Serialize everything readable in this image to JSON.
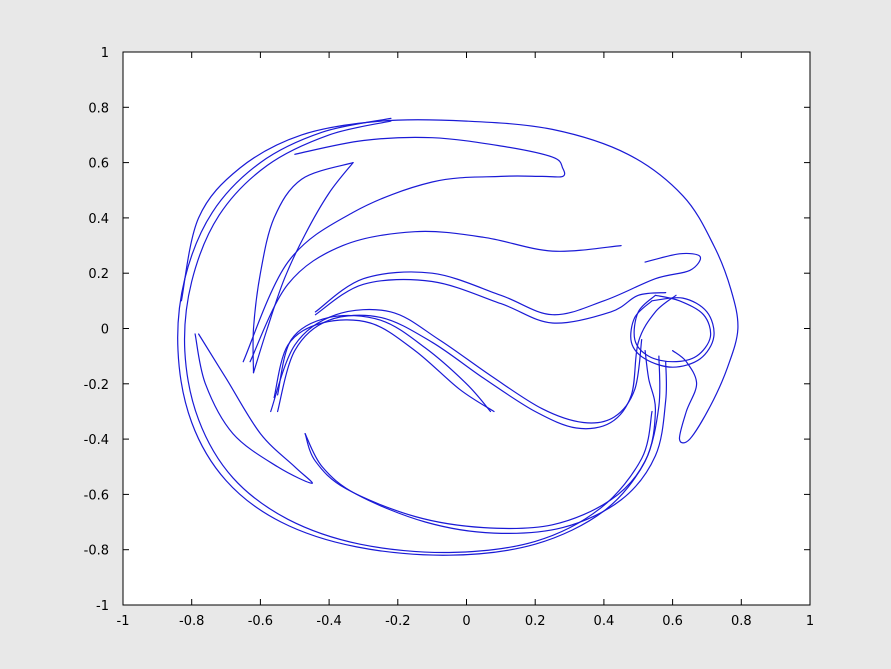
{
  "chart_data": {
    "type": "line",
    "title": "",
    "xlabel": "",
    "ylabel": "",
    "xlim": [
      -1,
      1
    ],
    "ylim": [
      -1,
      1
    ],
    "grid": false,
    "legend": "none",
    "line_color": "#1a1ad6",
    "background": "#e8e8e8",
    "plot_background": "#ffffff",
    "xticks": [
      -1,
      -0.8,
      -0.6,
      -0.4,
      -0.2,
      0,
      0.2,
      0.4,
      0.6,
      0.8,
      1
    ],
    "xtick_labels": [
      "-1",
      "-0.8",
      "-0.6",
      "-0.4",
      "-0.2",
      "0",
      "0.2",
      "0.4",
      "0.6",
      "0.8",
      "1"
    ],
    "yticks": [
      -1,
      -0.8,
      -0.6,
      -0.4,
      -0.2,
      0,
      0.2,
      0.4,
      0.6,
      0.8,
      1
    ],
    "ytick_labels": [
      "-1",
      "-0.8",
      "-0.6",
      "-0.4",
      "-0.2",
      "0",
      "0.2",
      "0.4",
      "0.6",
      "0.8",
      "1"
    ],
    "series": [
      {
        "points": [
          [
            -0.22,
            0.76
          ],
          [
            -0.42,
            0.71
          ],
          [
            -0.6,
            0.6
          ],
          [
            -0.74,
            0.42
          ],
          [
            -0.82,
            0.18
          ],
          [
            -0.84,
            -0.08
          ],
          [
            -0.8,
            -0.34
          ],
          [
            -0.7,
            -0.55
          ],
          [
            -0.54,
            -0.7
          ],
          [
            -0.32,
            -0.79
          ],
          [
            -0.05,
            -0.82
          ],
          [
            0.2,
            -0.78
          ],
          [
            0.4,
            -0.66
          ],
          [
            0.52,
            -0.48
          ],
          [
            0.55,
            -0.3
          ],
          [
            0.53,
            -0.18
          ],
          [
            0.52,
            -0.08
          ]
        ]
      },
      {
        "points": [
          [
            -0.22,
            0.75
          ],
          [
            -0.4,
            0.7
          ],
          [
            -0.58,
            0.59
          ],
          [
            -0.72,
            0.41
          ],
          [
            -0.8,
            0.17
          ],
          [
            -0.82,
            -0.08
          ],
          [
            -0.78,
            -0.33
          ],
          [
            -0.68,
            -0.54
          ],
          [
            -0.52,
            -0.69
          ],
          [
            -0.31,
            -0.78
          ],
          [
            -0.05,
            -0.81
          ],
          [
            0.2,
            -0.77
          ],
          [
            0.39,
            -0.65
          ],
          [
            0.51,
            -0.47
          ],
          [
            0.54,
            -0.3
          ]
        ]
      },
      {
        "points": [
          [
            -0.83,
            0.1
          ],
          [
            -0.78,
            0.4
          ],
          [
            -0.66,
            0.58
          ],
          [
            -0.48,
            0.7
          ],
          [
            -0.25,
            0.75
          ],
          [
            0,
            0.75
          ],
          [
            0.25,
            0.72
          ],
          [
            0.47,
            0.63
          ],
          [
            0.63,
            0.48
          ],
          [
            0.72,
            0.3
          ],
          [
            0.77,
            0.14
          ],
          [
            0.79,
            0
          ],
          [
            0.76,
            -0.14
          ],
          [
            0.71,
            -0.28
          ],
          [
            0.65,
            -0.4
          ],
          [
            0.62,
            -0.4
          ],
          [
            0.64,
            -0.3
          ],
          [
            0.67,
            -0.2
          ],
          [
            0.64,
            -0.12
          ],
          [
            0.6,
            -0.08
          ]
        ]
      },
      {
        "points": [
          [
            -0.33,
            0.6
          ],
          [
            -0.48,
            0.54
          ],
          [
            -0.56,
            0.4
          ],
          [
            -0.6,
            0.2
          ],
          [
            -0.62,
            0
          ],
          [
            -0.62,
            -0.16
          ]
        ]
      },
      {
        "points": [
          [
            -0.33,
            0.6
          ],
          [
            -0.4,
            0.49
          ],
          [
            -0.47,
            0.34
          ],
          [
            -0.53,
            0.18
          ],
          [
            -0.58,
            0
          ],
          [
            -0.62,
            -0.16
          ]
        ]
      },
      {
        "points": [
          [
            -0.65,
            -0.12
          ],
          [
            -0.52,
            0.24
          ],
          [
            -0.33,
            0.42
          ],
          [
            -0.1,
            0.53
          ],
          [
            0.1,
            0.55
          ],
          [
            0.22,
            0.55
          ],
          [
            0.28,
            0.55
          ],
          [
            0.28,
            0.58
          ],
          [
            0.25,
            0.62
          ],
          [
            0.1,
            0.66
          ],
          [
            -0.1,
            0.69
          ],
          [
            -0.3,
            0.68
          ],
          [
            -0.5,
            0.63
          ]
        ]
      },
      {
        "points": [
          [
            -0.63,
            -0.12
          ],
          [
            -0.52,
            0.16
          ],
          [
            -0.36,
            0.3
          ],
          [
            -0.15,
            0.35
          ],
          [
            0.05,
            0.33
          ],
          [
            0.25,
            0.28
          ],
          [
            0.45,
            0.3
          ]
        ]
      },
      {
        "points": [
          [
            -0.44,
            0.06
          ],
          [
            -0.3,
            0.18
          ],
          [
            -0.1,
            0.2
          ],
          [
            0.1,
            0.12
          ],
          [
            0.25,
            0.05
          ],
          [
            0.4,
            0.1
          ],
          [
            0.55,
            0.18
          ],
          [
            0.65,
            0.21
          ],
          [
            0.68,
            0.26
          ],
          [
            0.62,
            0.27
          ],
          [
            0.52,
            0.24
          ]
        ]
      },
      {
        "points": [
          [
            -0.44,
            0.05
          ],
          [
            -0.3,
            0.16
          ],
          [
            -0.1,
            0.17
          ],
          [
            0.1,
            0.09
          ],
          [
            0.25,
            0.02
          ],
          [
            0.42,
            0.06
          ],
          [
            0.5,
            0.12
          ],
          [
            0.58,
            0.13
          ]
        ]
      },
      {
        "points": [
          [
            -0.55,
            -0.3
          ],
          [
            -0.5,
            -0.08
          ],
          [
            -0.4,
            0.03
          ],
          [
            -0.25,
            0.04
          ],
          [
            -0.1,
            -0.05
          ],
          [
            0.05,
            -0.18
          ],
          [
            0.2,
            -0.3
          ],
          [
            0.32,
            -0.36
          ],
          [
            0.42,
            -0.34
          ],
          [
            0.48,
            -0.24
          ],
          [
            0.5,
            -0.05
          ],
          [
            0.55,
            0.06
          ],
          [
            0.61,
            0.12
          ]
        ]
      },
      {
        "points": [
          [
            -0.57,
            -0.3
          ],
          [
            -0.5,
            -0.06
          ],
          [
            -0.38,
            0.05
          ],
          [
            -0.22,
            0.06
          ],
          [
            -0.08,
            -0.04
          ],
          [
            0.07,
            -0.17
          ],
          [
            0.22,
            -0.29
          ],
          [
            0.34,
            -0.34
          ],
          [
            0.43,
            -0.32
          ],
          [
            0.49,
            -0.22
          ],
          [
            0.51,
            -0.04
          ]
        ]
      },
      {
        "points": [
          [
            -0.56,
            -0.25
          ],
          [
            -0.52,
            -0.06
          ],
          [
            -0.42,
            0.02
          ],
          [
            -0.28,
            0.02
          ],
          [
            -0.15,
            -0.08
          ],
          [
            -0.02,
            -0.22
          ],
          [
            0.08,
            -0.3
          ]
        ]
      },
      {
        "points": [
          [
            -0.55,
            -0.24
          ],
          [
            -0.51,
            -0.04
          ],
          [
            -0.4,
            0.04
          ],
          [
            -0.25,
            0.03
          ],
          [
            -0.12,
            -0.07
          ],
          [
            0,
            -0.2
          ],
          [
            0.07,
            -0.3
          ]
        ]
      },
      {
        "points": [
          [
            -0.79,
            -0.02
          ],
          [
            -0.76,
            -0.2
          ],
          [
            -0.68,
            -0.38
          ],
          [
            -0.55,
            -0.5
          ],
          [
            -0.45,
            -0.56
          ],
          [
            -0.5,
            -0.5
          ],
          [
            -0.6,
            -0.38
          ],
          [
            -0.7,
            -0.18
          ],
          [
            -0.78,
            -0.02
          ]
        ]
      },
      {
        "points": [
          [
            -0.47,
            -0.38
          ],
          [
            -0.44,
            -0.48
          ],
          [
            -0.35,
            -0.58
          ],
          [
            -0.15,
            -0.68
          ],
          [
            0.05,
            -0.72
          ],
          [
            0.25,
            -0.71
          ],
          [
            0.42,
            -0.62
          ],
          [
            0.52,
            -0.48
          ],
          [
            0.56,
            -0.28
          ],
          [
            0.56,
            -0.1
          ]
        ]
      },
      {
        "points": [
          [
            -0.47,
            -0.38
          ],
          [
            -0.42,
            -0.5
          ],
          [
            -0.32,
            -0.6
          ],
          [
            -0.12,
            -0.7
          ],
          [
            0.08,
            -0.74
          ],
          [
            0.28,
            -0.72
          ],
          [
            0.45,
            -0.62
          ],
          [
            0.55,
            -0.46
          ],
          [
            0.58,
            -0.26
          ],
          [
            0.58,
            -0.12
          ]
        ]
      },
      {
        "points": [
          [
            0.54,
            0.1
          ],
          [
            0.49,
            0.04
          ],
          [
            0.48,
            -0.05
          ],
          [
            0.52,
            -0.11
          ],
          [
            0.6,
            -0.14
          ],
          [
            0.68,
            -0.11
          ],
          [
            0.72,
            -0.03
          ],
          [
            0.7,
            0.06
          ],
          [
            0.63,
            0.11
          ],
          [
            0.54,
            0.1
          ]
        ]
      },
      {
        "points": [
          [
            0.55,
            0.12
          ],
          [
            0.5,
            0.06
          ],
          [
            0.49,
            -0.04
          ],
          [
            0.53,
            -0.1
          ],
          [
            0.6,
            -0.12
          ],
          [
            0.67,
            -0.1
          ],
          [
            0.71,
            -0.03
          ],
          [
            0.69,
            0.05
          ],
          [
            0.62,
            0.1
          ],
          [
            0.55,
            0.12
          ]
        ]
      }
    ]
  }
}
